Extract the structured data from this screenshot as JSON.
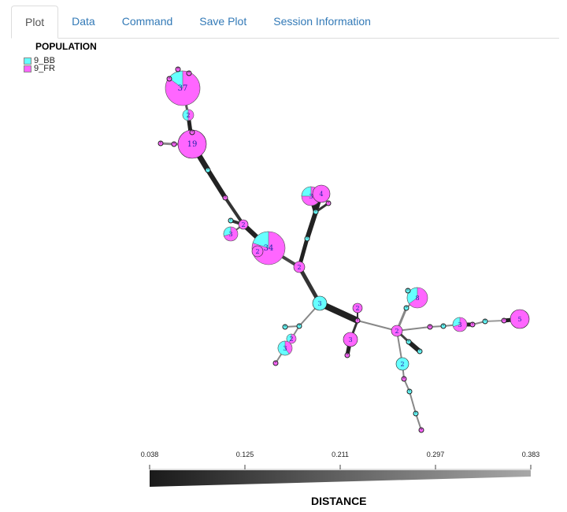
{
  "tabs": [
    "Plot",
    "Data",
    "Command",
    "Save Plot",
    "Session Information"
  ],
  "active_tab": "Plot",
  "legend": {
    "title": "POPULATION",
    "items": [
      {
        "label": "9_BB",
        "color": "#66FFFF"
      },
      {
        "label": "9_FR",
        "color": "#FF66FF"
      }
    ]
  },
  "scale": {
    "title": "DISTANCE",
    "ticks": [
      "0.038",
      "0.125",
      "0.211",
      "0.297",
      "0.383"
    ]
  },
  "node_labels": [
    "37",
    "2",
    "19",
    "2",
    "3",
    "34",
    "2",
    "3",
    "4",
    "2",
    "3",
    "2",
    "3",
    "2",
    "3",
    "2",
    "8",
    "3",
    "5",
    "2"
  ]
}
